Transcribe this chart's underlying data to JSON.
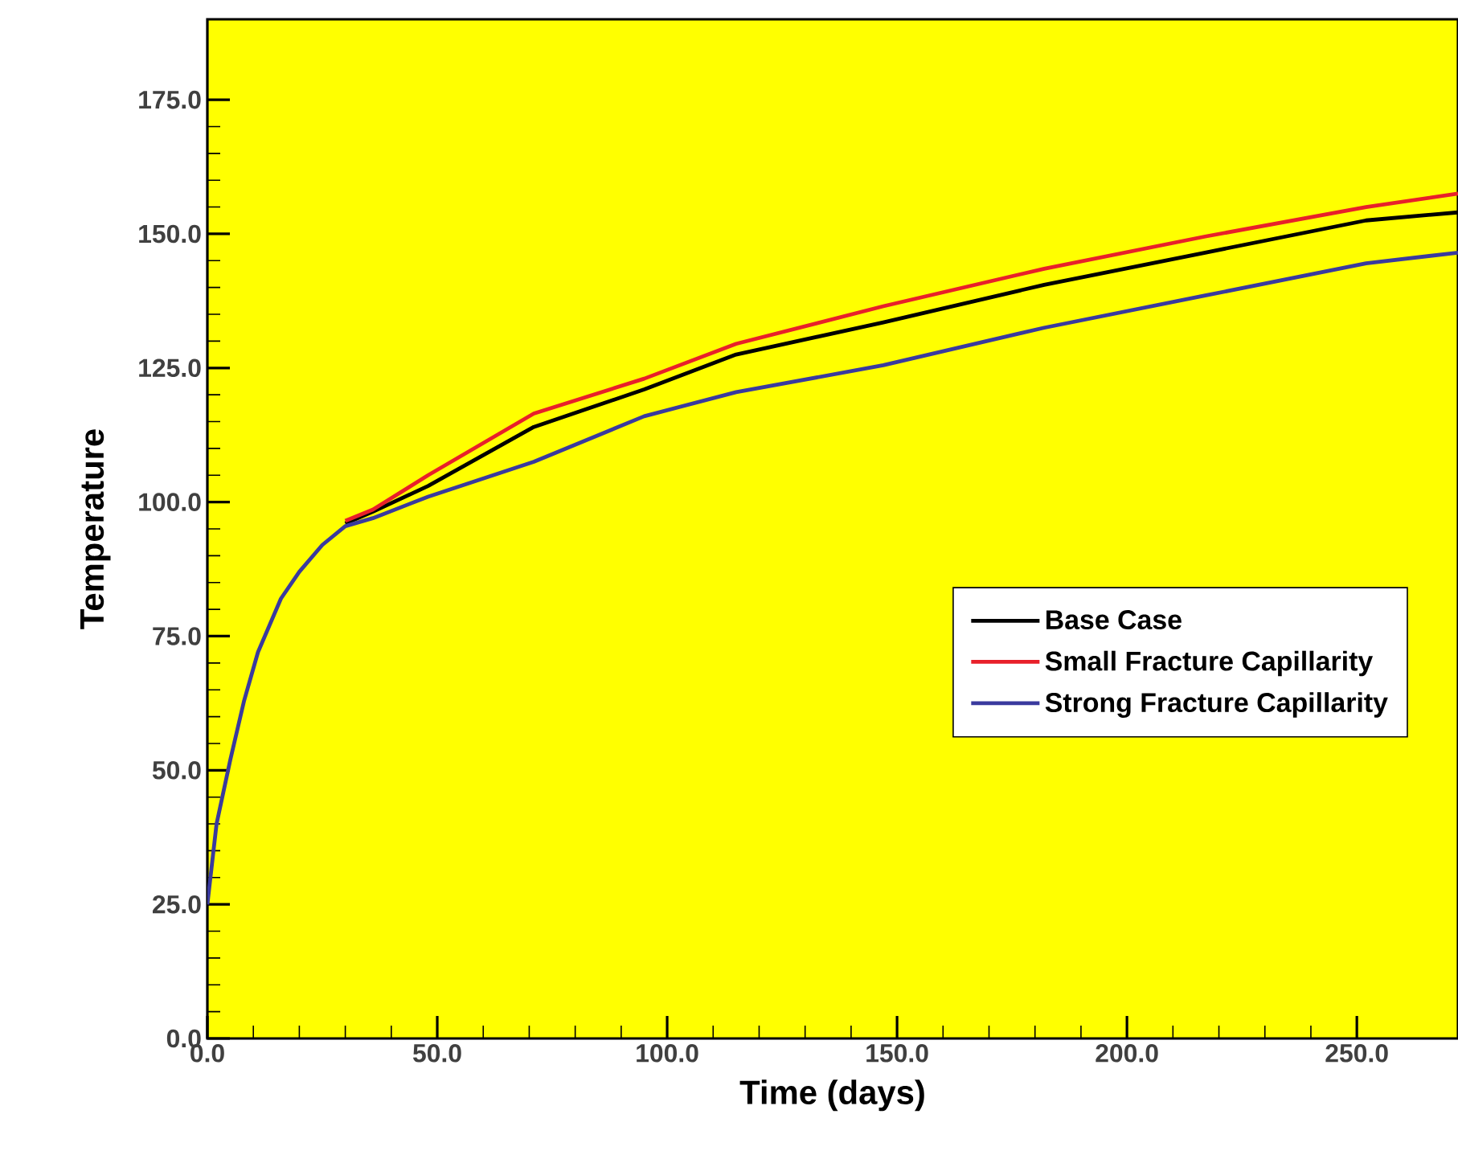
{
  "chart_data": {
    "type": "line",
    "xlabel": "Time (days)",
    "ylabel": "Temperature",
    "xlim": [
      0,
      272
    ],
    "ylim": [
      0,
      190
    ],
    "xticks": [
      {
        "value": 0,
        "label": "0.0"
      },
      {
        "value": 50,
        "label": "50.0"
      },
      {
        "value": 100,
        "label": "100.0"
      },
      {
        "value": 150,
        "label": "150.0"
      },
      {
        "value": 200,
        "label": "200.0"
      },
      {
        "value": 250,
        "label": "250.0"
      }
    ],
    "yticks": [
      {
        "value": 0,
        "label": "0.0"
      },
      {
        "value": 25,
        "label": "25.0"
      },
      {
        "value": 50,
        "label": "50.0"
      },
      {
        "value": 75,
        "label": "75.0"
      },
      {
        "value": 100,
        "label": "100.0"
      },
      {
        "value": 125,
        "label": "125.0"
      },
      {
        "value": 150,
        "label": "150.0"
      },
      {
        "value": 175,
        "label": "175.0"
      }
    ],
    "x": [
      0,
      2,
      5,
      8,
      11,
      16,
      20,
      25,
      30,
      36,
      48,
      71,
      95,
      115,
      147,
      182,
      217,
      252,
      272
    ],
    "series": [
      {
        "name": "Base Case",
        "color": "#000000",
        "values": [
          null,
          null,
          null,
          null,
          null,
          null,
          null,
          null,
          96,
          98.2,
          103,
          114,
          121,
          127.5,
          133.5,
          140.5,
          146.5,
          152.5,
          154
        ]
      },
      {
        "name": "Small Fracture Capillarity",
        "color": "#e8202a",
        "values": [
          null,
          null,
          null,
          null,
          null,
          null,
          null,
          null,
          96.5,
          98.6,
          105,
          116.5,
          123,
          129.5,
          136.5,
          143.5,
          149.5,
          155,
          157.5
        ]
      },
      {
        "name": "Strong Fracture Capillarity",
        "color": "#3a3a9e",
        "values": [
          25,
          40,
          52,
          63,
          72,
          82,
          87,
          92,
          95.5,
          97,
          101,
          107.5,
          116,
          120.5,
          125.5,
          132.5,
          138.5,
          144.5,
          146.5
        ]
      }
    ],
    "legend": "right",
    "grid": false,
    "marker": "none",
    "line_style": "solid"
  }
}
